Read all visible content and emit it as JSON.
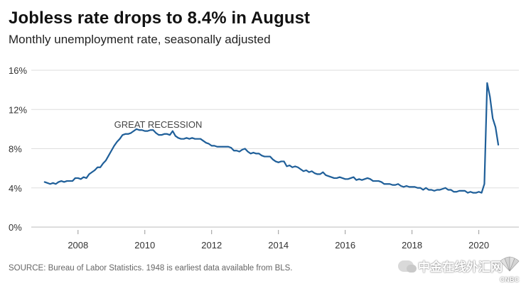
{
  "header": {
    "title": "Jobless rate drops to 8.4% in August",
    "subtitle": "Monthly unemployment rate, seasonally adjusted"
  },
  "footer": {
    "source": "SOURCE: Bureau of Labor Statistics. 1948 is earliest data available from BLS."
  },
  "watermark": {
    "icon": "wechat-icon",
    "text": "中金在线外汇网",
    "logo": "CNBC"
  },
  "chart_data": {
    "type": "line",
    "title": "Jobless rate drops to 8.4% in August",
    "subtitle": "Monthly unemployment rate, seasonally adjusted",
    "xlabel": "",
    "ylabel": "",
    "xlim": [
      2006.6,
      2021.2
    ],
    "ylim": [
      0,
      16
    ],
    "yticks": [
      0,
      4,
      8,
      12,
      16
    ],
    "ytick_labels": [
      "0%",
      "4%",
      "8%",
      "12%",
      "16%"
    ],
    "xticks": [
      2008,
      2010,
      2012,
      2014,
      2016,
      2018,
      2020
    ],
    "xtick_labels": [
      "2008",
      "2010",
      "2012",
      "2014",
      "2016",
      "2018",
      "2020"
    ],
    "grid": "horizontal",
    "line_color": "#1f5f99",
    "annotations": [
      {
        "text": "GREAT RECESSION",
        "x": 2010.4,
        "y": 10.5
      }
    ],
    "series": [
      {
        "start": "2007-01",
        "values": [
          4.6,
          4.5,
          4.4,
          4.5,
          4.4,
          4.6,
          4.7,
          4.6,
          4.7,
          4.7,
          4.7,
          5.0,
          5.0,
          4.9,
          5.1,
          5.0,
          5.4,
          5.6,
          5.8,
          6.1,
          6.1,
          6.5,
          6.8,
          7.3,
          7.8,
          8.3,
          8.7,
          9.0,
          9.4,
          9.5,
          9.5,
          9.6,
          9.8,
          10.0,
          9.9,
          9.9,
          9.8,
          9.8,
          9.9,
          9.9,
          9.6,
          9.4,
          9.4,
          9.5,
          9.5,
          9.4,
          9.8,
          9.3,
          9.1,
          9.0,
          9.0,
          9.1,
          9.0,
          9.1,
          9.0,
          9.0,
          9.0,
          8.8,
          8.6,
          8.5,
          8.3,
          8.3,
          8.2,
          8.2,
          8.2,
          8.2,
          8.2,
          8.1,
          7.8,
          7.8,
          7.7,
          7.9,
          8.0,
          7.7,
          7.5,
          7.6,
          7.5,
          7.5,
          7.3,
          7.2,
          7.2,
          7.2,
          6.9,
          6.7,
          6.6,
          6.7,
          6.7,
          6.2,
          6.3,
          6.1,
          6.2,
          6.1,
          5.9,
          5.7,
          5.8,
          5.6,
          5.7,
          5.5,
          5.4,
          5.4,
          5.6,
          5.3,
          5.2,
          5.1,
          5.0,
          5.0,
          5.1,
          5.0,
          4.9,
          4.9,
          5.0,
          5.1,
          4.8,
          4.9,
          4.8,
          4.9,
          5.0,
          4.9,
          4.7,
          4.7,
          4.7,
          4.6,
          4.4,
          4.4,
          4.4,
          4.3,
          4.3,
          4.4,
          4.2,
          4.1,
          4.2,
          4.1,
          4.1,
          4.1,
          4.0,
          4.0,
          3.8,
          4.0,
          3.8,
          3.8,
          3.7,
          3.8,
          3.8,
          3.9,
          4.0,
          3.8,
          3.8,
          3.6,
          3.6,
          3.7,
          3.7,
          3.7,
          3.5,
          3.6,
          3.5,
          3.5,
          3.6,
          3.5,
          4.4,
          14.7,
          13.3,
          11.1,
          10.2,
          8.4
        ]
      }
    ]
  }
}
